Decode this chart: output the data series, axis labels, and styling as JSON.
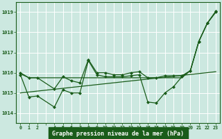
{
  "title": "Graphe pression niveau de la mer (hPa)",
  "bg_color": "#cce8e0",
  "grid_color": "#ffffff",
  "line_color": "#1a5c1a",
  "xlabel_bg": "#1a5c1a",
  "xlabel_fg": "#ffffff",
  "ylim": [
    1013.5,
    1019.5
  ],
  "yticks": [
    1014,
    1015,
    1016,
    1017,
    1018,
    1019
  ],
  "xtick_labels": [
    "0",
    "1",
    "2",
    "",
    "4",
    "5",
    "6",
    "7",
    "8",
    "9",
    "10",
    "11",
    "12",
    "13",
    "14",
    "15",
    "16",
    "17",
    "18",
    "19",
    "20",
    "21",
    "22",
    "23"
  ],
  "series": [
    {
      "x": [
        0,
        1,
        2,
        4,
        5,
        6,
        7,
        8,
        9,
        10,
        11,
        12,
        13,
        14,
        15,
        16,
        17,
        18,
        19,
        20,
        21,
        22,
        23
      ],
      "y": [
        1015.95,
        1015.75,
        1015.75,
        1015.75,
        1015.75,
        1015.75,
        1015.75,
        1015.75,
        1015.75,
        1015.75,
        1015.75,
        1015.75,
        1015.75,
        1015.75,
        1015.75,
        1015.75,
        1015.75,
        1015.75,
        1015.75,
        1016.1,
        1017.55,
        1018.45,
        1019.0
      ],
      "marker": false
    },
    {
      "x": [
        0,
        23
      ],
      "y": [
        1015.0,
        1016.05
      ],
      "marker": false
    },
    {
      "x": [
        0,
        1,
        2,
        4,
        5,
        6,
        7,
        8,
        9,
        10,
        11,
        12,
        13,
        14,
        15,
        16,
        17,
        18,
        19,
        20,
        21,
        22,
        23
      ],
      "y": [
        1016.0,
        1015.75,
        1015.75,
        1015.2,
        1015.8,
        1015.6,
        1015.5,
        1016.65,
        1016.0,
        1016.0,
        1015.9,
        1015.9,
        1016.0,
        1016.05,
        1015.75,
        1015.75,
        1015.85,
        1015.85,
        1015.85,
        1016.1,
        1017.55,
        1018.45,
        1019.0
      ],
      "marker": true
    },
    {
      "x": [
        0,
        1,
        2,
        4,
        5,
        6,
        7,
        8,
        9,
        10,
        11,
        12,
        13,
        14,
        15,
        16,
        17,
        18,
        19,
        20,
        21,
        22,
        23
      ],
      "y": [
        1015.9,
        1014.8,
        1014.85,
        1014.3,
        1015.15,
        1015.0,
        1015.0,
        1016.6,
        1015.9,
        1015.8,
        1015.8,
        1015.8,
        1015.85,
        1015.9,
        1014.55,
        1014.5,
        1015.0,
        1015.3,
        1015.8,
        1016.1,
        1017.55,
        1018.45,
        1019.05
      ],
      "marker": true
    }
  ]
}
